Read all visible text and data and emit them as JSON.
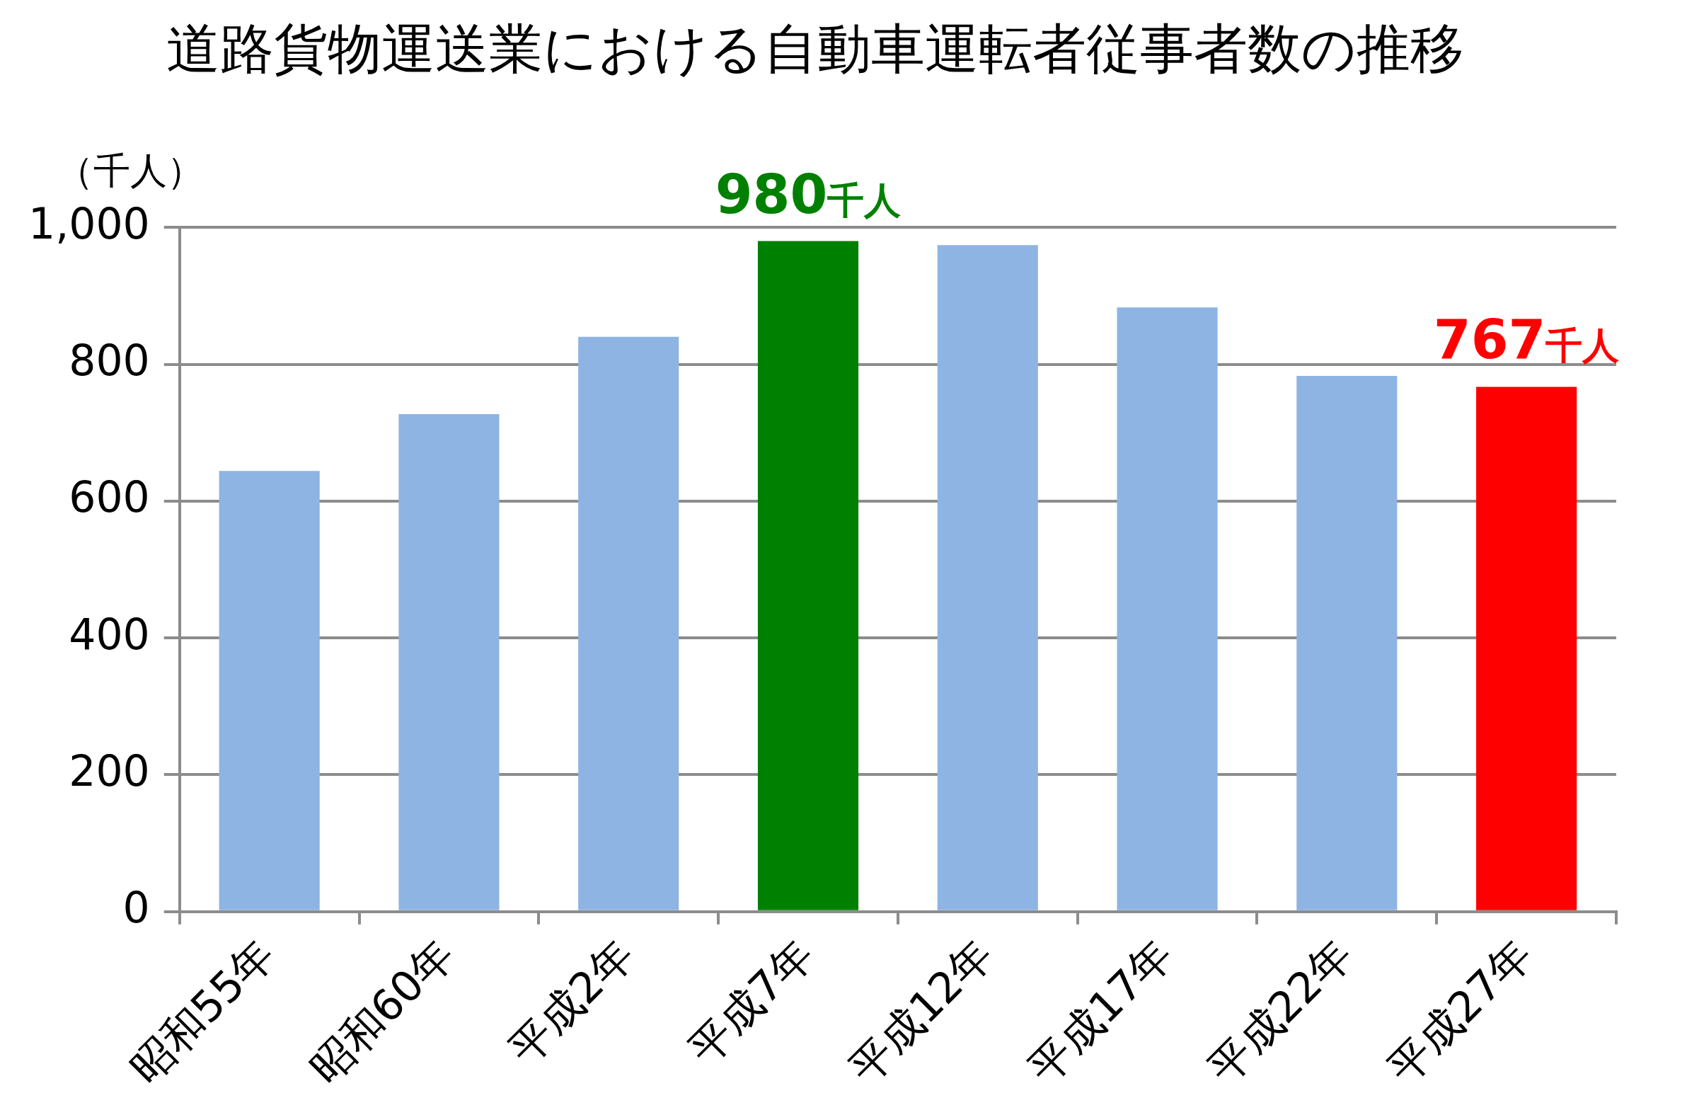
{
  "chart_data": {
    "type": "bar",
    "title": "道路貨物運送業における自動車運転者従事者数の推移",
    "ylabel": "（千人）",
    "categories": [
      "昭和55年",
      "昭和60年",
      "平成2年",
      "平成7年",
      "平成12年",
      "平成17年",
      "平成22年",
      "平成27年"
    ],
    "values": [
      644,
      727,
      840,
      980,
      974,
      883,
      783,
      767
    ],
    "colors": [
      "#8eb4e3",
      "#8eb4e3",
      "#8eb4e3",
      "#008000",
      "#8eb4e3",
      "#8eb4e3",
      "#8eb4e3",
      "#ff0000"
    ],
    "value_labels": [
      null,
      null,
      null,
      "980千人",
      null,
      null,
      null,
      "767千人"
    ],
    "ylim": [
      0,
      1000
    ],
    "yticks": [
      0,
      200,
      400,
      600,
      800,
      {
        "value": 1000,
        "label": "1,000"
      }
    ],
    "grid": "y"
  }
}
